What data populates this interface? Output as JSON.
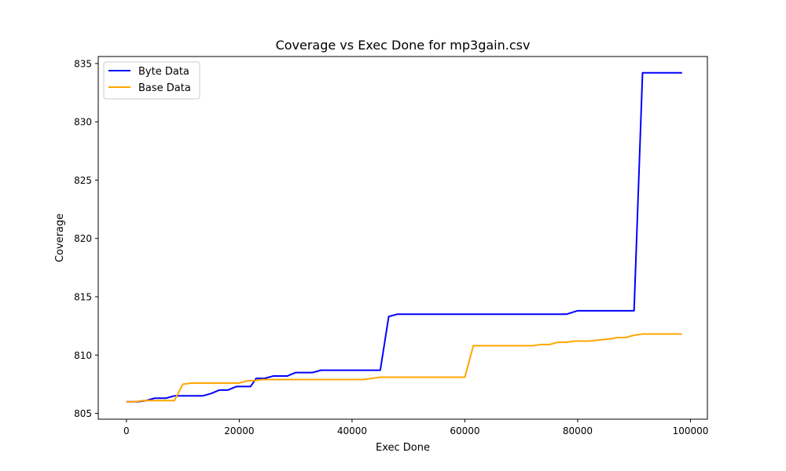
{
  "chart_data": {
    "type": "line",
    "title": "Coverage vs Exec Done for mp3gain.csv",
    "xlabel": "Exec Done",
    "ylabel": "Coverage",
    "xlim": [
      -5000,
      103000
    ],
    "ylim": [
      804.5,
      835.6
    ],
    "xticks": [
      0,
      20000,
      40000,
      60000,
      80000,
      100000
    ],
    "yticks": [
      805,
      810,
      815,
      820,
      825,
      830,
      835
    ],
    "grid": false,
    "legend": "top-left",
    "series": [
      {
        "name": "Byte Data",
        "color": "#0000ff",
        "x": [
          0,
          2000,
          3500,
          5000,
          7000,
          8500,
          10000,
          12000,
          13500,
          15000,
          16500,
          18000,
          19500,
          21000,
          22000,
          23000,
          24500,
          26000,
          27000,
          28500,
          30000,
          31500,
          33000,
          34500,
          36000,
          40000,
          45000,
          46500,
          48000,
          60000,
          70000,
          78000,
          80000,
          85000,
          90000,
          91500,
          98500
        ],
        "y": [
          806.0,
          806.0,
          806.1,
          806.3,
          806.3,
          806.5,
          806.5,
          806.5,
          806.5,
          806.7,
          807.0,
          807.0,
          807.3,
          807.3,
          807.3,
          808.0,
          808.0,
          808.2,
          808.2,
          808.2,
          808.5,
          808.5,
          808.5,
          808.7,
          808.7,
          808.7,
          808.7,
          813.3,
          813.5,
          813.5,
          813.5,
          813.5,
          813.8,
          813.8,
          813.8,
          834.2,
          834.2
        ]
      },
      {
        "name": "Base Data",
        "color": "#ffa500",
        "x": [
          0,
          1500,
          3000,
          5000,
          7000,
          8500,
          10000,
          11500,
          13500,
          15000,
          17000,
          18500,
          20000,
          21500,
          22500,
          24000,
          26000,
          40000,
          42000,
          45000,
          50000,
          56000,
          60000,
          61500,
          63000,
          70000,
          72000,
          73500,
          75000,
          76500,
          78000,
          79500,
          80500,
          82000,
          84000,
          86000,
          87000,
          88500,
          90000,
          91500,
          98500
        ],
        "y": [
          806.0,
          806.0,
          806.1,
          806.1,
          806.1,
          806.1,
          807.5,
          807.6,
          807.6,
          807.6,
          807.6,
          807.6,
          807.6,
          807.8,
          807.8,
          807.9,
          807.9,
          807.9,
          807.9,
          808.1,
          808.1,
          808.1,
          808.1,
          810.8,
          810.8,
          810.8,
          810.8,
          810.9,
          810.9,
          811.1,
          811.1,
          811.2,
          811.2,
          811.2,
          811.3,
          811.4,
          811.5,
          811.5,
          811.7,
          811.8,
          811.8
        ]
      }
    ]
  }
}
